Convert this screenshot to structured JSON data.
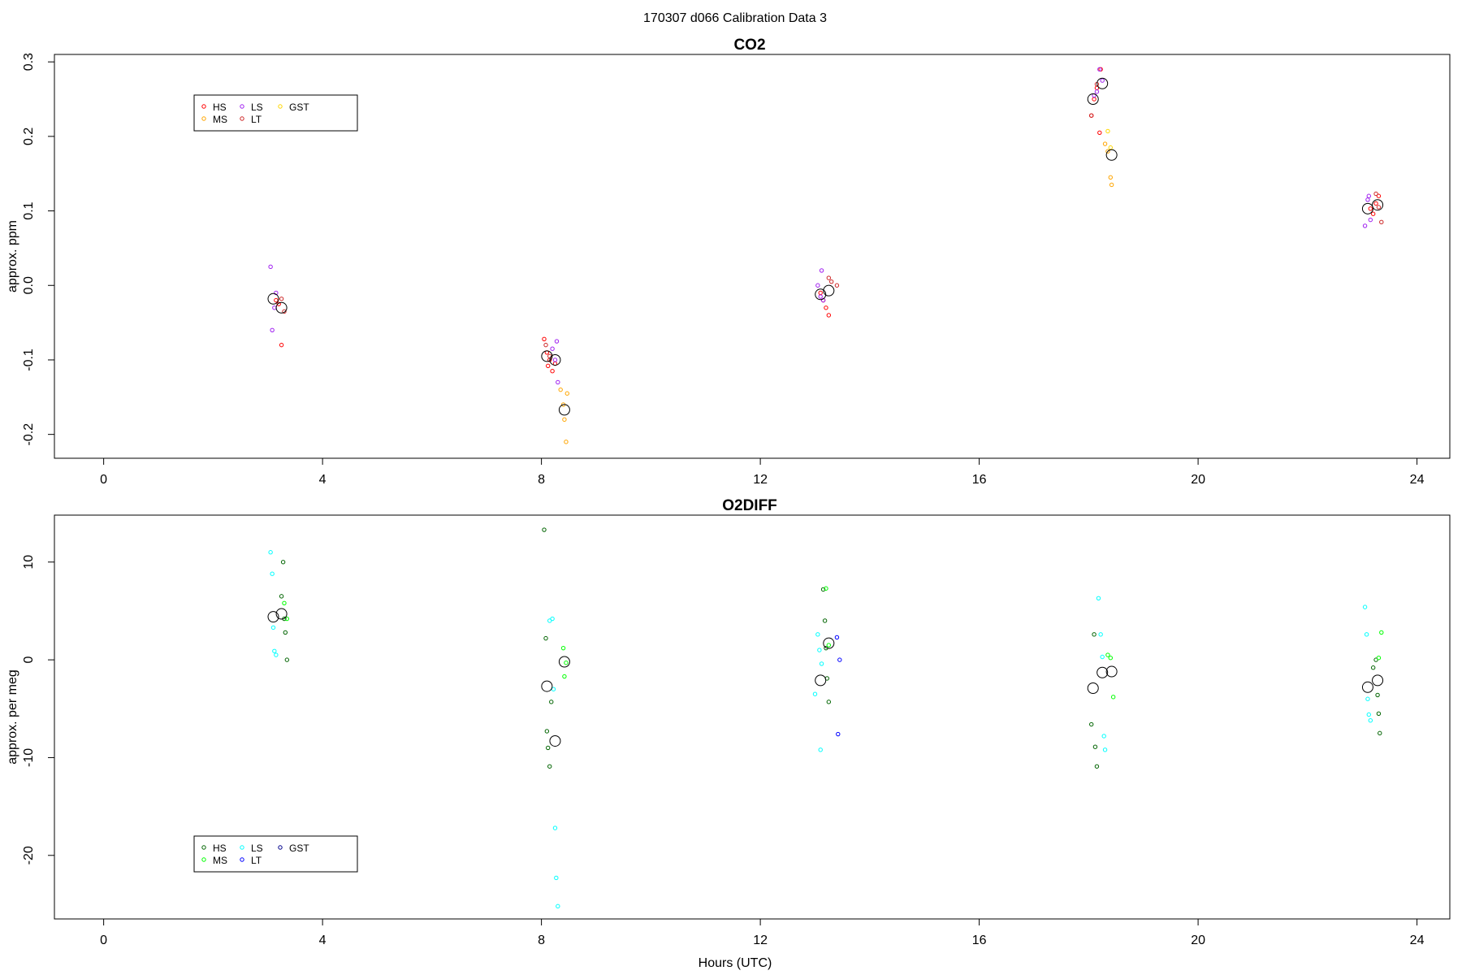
{
  "figure": {
    "title": "170307   d066   Calibration Data 3",
    "xlabel": "Hours (UTC)"
  },
  "chart_data": [
    {
      "type": "scatter",
      "title": "CO2",
      "xlabel": "",
      "ylabel": "approx. ppm",
      "xlim": [
        -0.9,
        24.6
      ],
      "ylim": [
        -0.232,
        0.31
      ],
      "xticks": [
        0,
        4,
        8,
        12,
        16,
        20,
        24
      ],
      "yticks": [
        -0.2,
        -0.1,
        0.0,
        0.1,
        0.2,
        0.3
      ],
      "ytick_labels": [
        "-0.2",
        "-0.1",
        "0.0",
        "0.1",
        "0.2",
        "0.3"
      ],
      "grid": false,
      "legend_position": "top-left",
      "legend": [
        {
          "label": "HS",
          "color": "#ff0000"
        },
        {
          "label": "MS",
          "color": "#ffa500"
        },
        {
          "label": "LS",
          "color": "#a020f0"
        },
        {
          "label": "LT",
          "color": "#cd2626"
        },
        {
          "label": "GST",
          "color": "#ffd700"
        }
      ],
      "series": [
        {
          "name": "HS",
          "color": "#ff0000",
          "x": [
            3.15,
            3.2,
            3.25,
            8.05,
            8.1,
            8.12,
            8.15,
            8.2,
            8.25,
            13.1,
            13.15,
            13.2,
            13.25,
            18.05,
            18.1,
            18.15,
            18.2,
            18.22,
            23.15,
            23.2,
            23.25,
            23.3
          ],
          "y": [
            -0.02,
            -0.025,
            -0.08,
            -0.072,
            -0.09,
            -0.108,
            -0.1,
            -0.115,
            -0.105,
            -0.01,
            -0.02,
            -0.03,
            -0.04,
            0.228,
            0.25,
            0.265,
            0.205,
            0.29,
            0.103,
            0.096,
            0.11,
            0.12
          ]
        },
        {
          "name": "MS",
          "color": "#ffa500",
          "x": [
            8.35,
            8.4,
            8.42,
            8.45,
            8.47,
            18.3,
            18.35,
            18.4,
            18.42
          ],
          "y": [
            -0.14,
            -0.16,
            -0.18,
            -0.21,
            -0.145,
            0.19,
            0.18,
            0.145,
            0.135
          ]
        },
        {
          "name": "LS",
          "color": "#a020f0",
          "x": [
            3.05,
            3.08,
            3.12,
            3.15,
            8.2,
            8.25,
            8.28,
            8.3,
            13.05,
            13.1,
            13.12,
            13.15,
            18.1,
            18.15,
            18.2,
            18.25,
            23.05,
            23.1,
            23.12,
            23.15
          ],
          "y": [
            0.025,
            -0.06,
            -0.03,
            -0.01,
            -0.085,
            -0.1,
            -0.075,
            -0.13,
            0.0,
            -0.015,
            0.02,
            -0.02,
            0.255,
            0.26,
            0.29,
            0.275,
            0.08,
            0.115,
            0.12,
            0.088
          ]
        },
        {
          "name": "LT",
          "color": "#cd2626",
          "x": [
            3.25,
            3.3,
            8.08,
            8.15,
            13.25,
            13.3,
            13.4,
            18.05,
            18.15,
            23.25,
            23.3,
            23.35
          ],
          "y": [
            -0.018,
            -0.035,
            -0.08,
            -0.095,
            0.01,
            0.005,
            0.0,
            0.228,
            0.27,
            0.123,
            0.105,
            0.085
          ]
        },
        {
          "name": "GST",
          "color": "#ffd700",
          "x": [
            18.35,
            18.4
          ],
          "y": [
            0.207,
            0.185
          ]
        }
      ],
      "means": {
        "color": "#000000",
        "x": [
          3.1,
          3.25,
          8.1,
          8.25,
          8.42,
          13.1,
          13.25,
          18.08,
          18.25,
          18.42,
          23.1,
          23.28
        ],
        "y": [
          -0.018,
          -0.03,
          -0.095,
          -0.1,
          -0.167,
          -0.012,
          -0.007,
          0.25,
          0.271,
          0.175,
          0.103,
          0.108
        ]
      }
    },
    {
      "type": "scatter",
      "title": "O2DIFF",
      "xlabel": "Hours (UTC)",
      "ylabel": "approx. per meg",
      "xlim": [
        -0.9,
        24.6
      ],
      "ylim": [
        -26.5,
        14.8
      ],
      "xticks": [
        0,
        4,
        8,
        12,
        16,
        20,
        24
      ],
      "yticks": [
        -20,
        -10,
        0,
        10
      ],
      "ytick_labels": [
        "-20",
        "-10",
        "0",
        "10"
      ],
      "grid": false,
      "legend_position": "bottom-left",
      "legend": [
        {
          "label": "HS",
          "color": "#006400"
        },
        {
          "label": "MS",
          "color": "#00ff00"
        },
        {
          "label": "LS",
          "color": "#00ffff"
        },
        {
          "label": "LT",
          "color": "#0000ff"
        },
        {
          "label": "GST",
          "color": "#00008b"
        }
      ],
      "series": [
        {
          "name": "HS",
          "color": "#006400",
          "x": [
            3.25,
            3.28,
            3.3,
            3.32,
            3.35,
            8.05,
            8.08,
            8.1,
            8.12,
            8.15,
            8.18,
            13.15,
            13.18,
            13.2,
            13.22,
            13.25,
            18.05,
            18.1,
            18.12,
            18.15,
            23.2,
            23.25,
            23.28,
            23.3,
            23.32
          ],
          "y": [
            6.5,
            10.0,
            4.2,
            2.8,
            0.0,
            13.3,
            2.2,
            -7.3,
            -9.0,
            -10.9,
            -4.3,
            7.2,
            4.0,
            1.2,
            -1.9,
            -4.3,
            -6.6,
            2.6,
            -8.9,
            -10.9,
            -0.8,
            0.0,
            -3.6,
            -5.5,
            -7.5
          ]
        },
        {
          "name": "MS",
          "color": "#00ff00",
          "x": [
            3.3,
            3.35,
            8.4,
            8.42,
            8.45,
            13.2,
            13.25,
            18.35,
            18.4,
            18.45,
            23.3,
            23.35
          ],
          "y": [
            5.8,
            4.2,
            1.2,
            -1.7,
            -0.3,
            7.3,
            1.5,
            0.5,
            0.2,
            -3.8,
            0.2,
            2.8
          ]
        },
        {
          "name": "LS",
          "color": "#00ffff",
          "x": [
            3.05,
            3.08,
            3.1,
            3.12,
            3.15,
            8.15,
            8.2,
            8.22,
            8.25,
            8.27,
            8.3,
            13.0,
            13.05,
            13.08,
            13.1,
            13.12,
            18.18,
            18.22,
            18.25,
            18.28,
            18.3,
            23.05,
            23.08,
            23.1,
            23.12,
            23.15
          ],
          "y": [
            11.0,
            8.8,
            3.3,
            0.9,
            0.5,
            4.0,
            4.2,
            -3.0,
            -17.2,
            -22.3,
            -25.2,
            -3.5,
            2.6,
            1.0,
            -9.2,
            -0.4,
            6.3,
            2.6,
            0.3,
            -7.8,
            -9.2,
            5.4,
            2.6,
            -4.0,
            -5.6,
            -6.2
          ]
        },
        {
          "name": "LT",
          "color": "#0000ff",
          "x": [
            13.4,
            13.42,
            13.45
          ],
          "y": [
            2.3,
            -7.6,
            0.0
          ]
        },
        {
          "name": "GST",
          "color": "#00008b",
          "x": [],
          "y": []
        }
      ],
      "means": {
        "color": "#000000",
        "x": [
          3.1,
          3.25,
          8.1,
          8.25,
          8.42,
          13.1,
          13.25,
          18.08,
          18.25,
          18.42,
          23.1,
          23.28
        ],
        "y": [
          4.4,
          4.7,
          -2.7,
          -8.3,
          -0.2,
          -2.1,
          1.7,
          -2.9,
          -1.3,
          -1.2,
          -2.8,
          -2.1
        ]
      }
    }
  ]
}
